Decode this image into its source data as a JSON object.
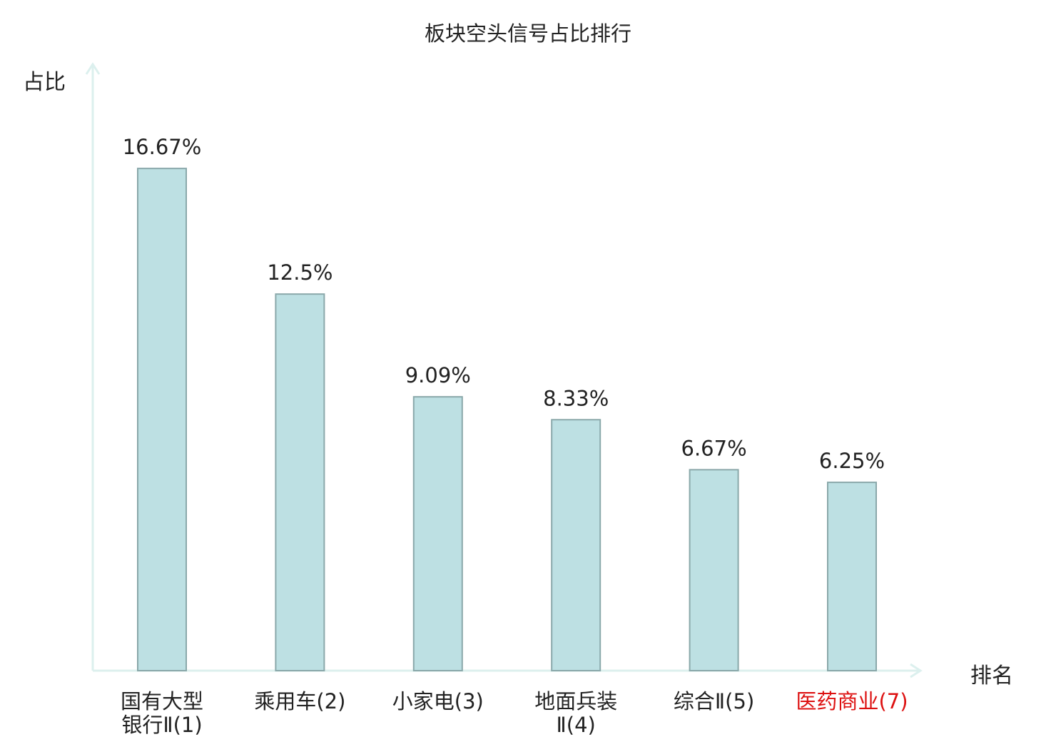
{
  "chart_data": {
    "type": "bar",
    "title": "板块空头信号占比排行",
    "ylabel": "占比",
    "xlabel": "排名",
    "categories": [
      "国有大型银行Ⅱ(1)",
      "乘用车(2)",
      "小家电(3)",
      "地面兵装Ⅱ(4)",
      "综合Ⅱ(5)",
      "医药商业(7)"
    ],
    "category_lines": [
      [
        "国有大型",
        "银行Ⅱ(1)"
      ],
      [
        "乘用车(2)"
      ],
      [
        "小家电(3)"
      ],
      [
        "地面兵装",
        "Ⅱ(4)"
      ],
      [
        "综合Ⅱ(5)"
      ],
      [
        "医药商业(7)"
      ]
    ],
    "category_colors": [
      "#222222",
      "#222222",
      "#222222",
      "#222222",
      "#222222",
      "#dd1111"
    ],
    "values": [
      16.67,
      12.5,
      9.09,
      8.33,
      6.67,
      6.25
    ],
    "value_labels": [
      "16.67%",
      "12.5%",
      "9.09%",
      "8.33%",
      "6.67%",
      "6.25%"
    ],
    "ylim": [
      0,
      20
    ],
    "grid": false,
    "legend": "none",
    "colors": {
      "bar_fill": "#bde0e3",
      "bar_stroke": "#8aa8aa",
      "axis": "#dcf0ee",
      "text": "#222222",
      "highlight": "#dd1111"
    }
  }
}
